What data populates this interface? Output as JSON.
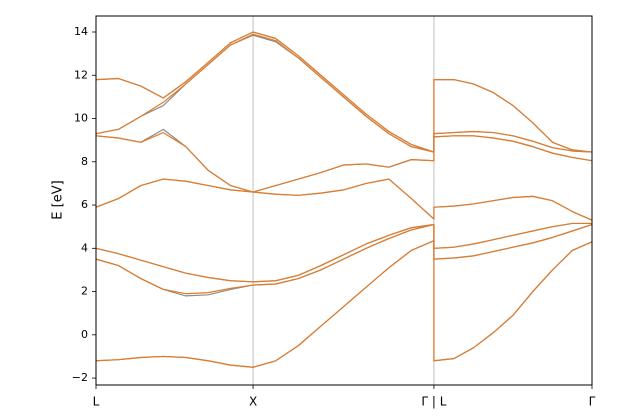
{
  "chart_data": {
    "type": "line",
    "ylabel": "E [eV]",
    "x": [
      0,
      0.136,
      0.271,
      0.407,
      0.543,
      0.679,
      0.814,
      0.95,
      1.087,
      1.224,
      1.36,
      1.497,
      1.634,
      1.771,
      1.907,
      2.044,
      2.044,
      2.164,
      2.283,
      2.403,
      2.522,
      2.642,
      2.761,
      2.881,
      3.0
    ],
    "xlim": [
      0,
      3.0
    ],
    "xticks": [
      {
        "value": 0,
        "label": "L"
      },
      {
        "value": 0.95,
        "label": "X"
      },
      {
        "value": 2.044,
        "label": "Γ | L"
      },
      {
        "value": 3.0,
        "label": "Γ"
      }
    ],
    "ylim": [
      -2.32,
      14.74
    ],
    "yticks": [
      {
        "value": -2,
        "label": "−2"
      },
      0,
      2,
      4,
      6,
      8,
      10,
      12,
      14
    ],
    "grid": "x",
    "series": [
      {
        "color": "#8c8c8c",
        "bands": [
          [
            -1.2,
            -1.15,
            -1.05,
            -1.0,
            -1.05,
            -1.2,
            -1.4,
            -1.5,
            -1.2,
            -0.5,
            0.4,
            1.3,
            2.2,
            3.1,
            3.9,
            4.35,
            -1.2,
            -1.1,
            -0.6,
            0.1,
            0.9,
            2.0,
            3.0,
            3.9,
            4.3
          ],
          [
            3.5,
            3.2,
            2.6,
            2.1,
            1.8,
            1.85,
            2.1,
            2.3,
            2.35,
            2.6,
            3.0,
            3.5,
            4.0,
            4.45,
            4.85,
            5.1,
            3.5,
            3.55,
            3.65,
            3.85,
            4.05,
            4.25,
            4.5,
            4.8,
            5.1
          ],
          [
            4.0,
            3.75,
            3.45,
            3.15,
            2.85,
            2.65,
            2.5,
            2.45,
            2.5,
            2.75,
            3.2,
            3.7,
            4.2,
            4.6,
            4.95,
            5.1,
            4.0,
            4.05,
            4.2,
            4.4,
            4.6,
            4.8,
            5.0,
            5.15,
            5.15
          ],
          [
            5.9,
            6.3,
            6.9,
            7.2,
            7.1,
            6.9,
            6.7,
            6.6,
            6.5,
            6.45,
            6.55,
            6.7,
            7.0,
            7.2,
            6.3,
            5.35,
            5.9,
            5.95,
            6.05,
            6.2,
            6.35,
            6.4,
            6.2,
            5.7,
            5.3
          ],
          [
            9.2,
            9.1,
            8.9,
            9.5,
            8.7,
            7.6,
            6.9,
            6.6,
            6.9,
            7.2,
            7.5,
            7.85,
            7.9,
            7.75,
            8.1,
            8.05,
            9.15,
            9.2,
            9.2,
            9.1,
            8.95,
            8.7,
            8.4,
            8.2,
            8.05
          ],
          [
            9.3,
            9.5,
            10.1,
            10.6,
            11.6,
            12.5,
            13.4,
            13.85,
            13.55,
            12.8,
            11.9,
            11.0,
            10.1,
            9.3,
            8.7,
            8.45,
            9.3,
            9.35,
            9.4,
            9.35,
            9.2,
            8.95,
            8.65,
            8.5,
            8.45
          ],
          [
            11.8,
            11.85,
            11.5,
            10.95,
            11.7,
            12.6,
            13.5,
            14.0,
            13.7,
            12.9,
            12.0,
            11.1,
            10.2,
            9.4,
            8.8,
            8.45,
            11.8,
            11.8,
            11.6,
            11.2,
            10.6,
            9.8,
            8.9,
            8.55,
            8.45
          ]
        ]
      },
      {
        "color": "#e07b2a",
        "bands": [
          [
            -1.2,
            -1.15,
            -1.05,
            -1.0,
            -1.05,
            -1.2,
            -1.4,
            -1.5,
            -1.2,
            -0.5,
            0.4,
            1.3,
            2.2,
            3.1,
            3.9,
            4.35,
            -1.2,
            -1.1,
            -0.6,
            0.1,
            0.9,
            2.0,
            3.0,
            3.9,
            4.3
          ],
          [
            3.5,
            3.2,
            2.6,
            2.1,
            1.9,
            1.95,
            2.15,
            2.3,
            2.35,
            2.6,
            3.0,
            3.5,
            4.0,
            4.45,
            4.85,
            5.1,
            3.5,
            3.55,
            3.65,
            3.85,
            4.05,
            4.25,
            4.5,
            4.8,
            5.1
          ],
          [
            4.0,
            3.75,
            3.45,
            3.15,
            2.85,
            2.65,
            2.5,
            2.45,
            2.5,
            2.75,
            3.2,
            3.7,
            4.2,
            4.6,
            4.95,
            5.1,
            4.0,
            4.05,
            4.2,
            4.4,
            4.6,
            4.8,
            5.0,
            5.15,
            5.15
          ],
          [
            5.9,
            6.3,
            6.9,
            7.2,
            7.1,
            6.9,
            6.7,
            6.6,
            6.5,
            6.45,
            6.55,
            6.7,
            7.0,
            7.2,
            6.3,
            5.35,
            5.9,
            5.95,
            6.05,
            6.2,
            6.35,
            6.4,
            6.2,
            5.7,
            5.3
          ],
          [
            9.2,
            9.1,
            8.9,
            9.35,
            8.7,
            7.6,
            6.9,
            6.6,
            6.9,
            7.2,
            7.5,
            7.85,
            7.9,
            7.75,
            8.1,
            8.05,
            9.15,
            9.2,
            9.2,
            9.1,
            8.95,
            8.7,
            8.4,
            8.2,
            8.05
          ],
          [
            9.3,
            9.5,
            10.1,
            10.75,
            11.6,
            12.5,
            13.4,
            13.9,
            13.6,
            12.8,
            11.9,
            11.0,
            10.1,
            9.3,
            8.7,
            8.45,
            9.3,
            9.35,
            9.4,
            9.35,
            9.2,
            8.95,
            8.65,
            8.5,
            8.45
          ],
          [
            11.8,
            11.85,
            11.5,
            10.95,
            11.7,
            12.6,
            13.5,
            14.0,
            13.7,
            12.9,
            12.0,
            11.1,
            10.2,
            9.4,
            8.8,
            8.45,
            11.8,
            11.8,
            11.6,
            11.2,
            10.6,
            9.8,
            8.9,
            8.55,
            8.45
          ]
        ]
      }
    ]
  }
}
